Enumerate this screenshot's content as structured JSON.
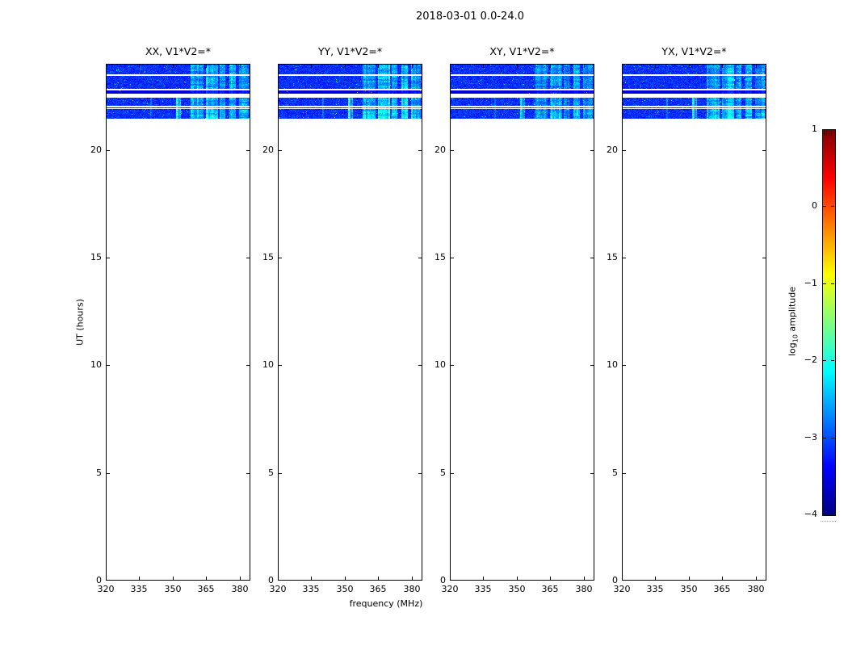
{
  "chart_data": {
    "type": "heatmap",
    "title": "2018-03-01 0.0-24.0",
    "xlabel": "frequency (MHz)",
    "ylabel": "UT (hours)",
    "xlim": [
      320,
      384
    ],
    "ylim": [
      0,
      24
    ],
    "xticks": [
      320,
      335,
      350,
      365,
      380
    ],
    "yticks": [
      0,
      5,
      10,
      15,
      20
    ],
    "grid": false,
    "panels": [
      {
        "label": "XX, V1*V2=*"
      },
      {
        "label": "YY, V1*V2=*"
      },
      {
        "label": "XY, V1*V2=*"
      },
      {
        "label": "YX, V1*V2=*"
      }
    ],
    "colorbar": {
      "label": "log10 amplitude",
      "label_parts": {
        "prefix": "log",
        "sub": "10",
        "suffix": " amplitude"
      },
      "lim": [
        -4,
        1
      ],
      "tick_values": [
        1,
        0,
        -1,
        -2,
        -3,
        -4
      ],
      "tick_labels": [
        "1",
        "0",
        "−1",
        "−2",
        "−3",
        "−4"
      ],
      "colormap": "jet",
      "colormap_stops": [
        [
          0.0,
          "#000080"
        ],
        [
          0.125,
          "#0000ff"
        ],
        [
          0.375,
          "#00ffff"
        ],
        [
          0.625,
          "#ffff00"
        ],
        [
          0.875,
          "#ff0000"
        ],
        [
          1.0,
          "#800000"
        ]
      ]
    },
    "observation": {
      "ut_range": [
        21.46,
        24.0
      ],
      "base_level": -3.15,
      "noise_sigma": 0.35,
      "gaps_ut": [
        [
          23.42,
          23.5
        ],
        [
          22.78,
          22.83
        ],
        [
          22.41,
          22.6
        ],
        [
          21.96,
          22.04
        ],
        [
          21.89,
          21.93
        ]
      ],
      "dark_band_ut": [
        22.6,
        22.78
      ],
      "rfi_bands": [
        {
          "mhz": [
            357.5,
            363.5
          ],
          "boost": 1.0
        },
        {
          "mhz": [
            364.5,
            369.8
          ],
          "boost": 1.25
        },
        {
          "mhz": [
            370.8,
            373.2
          ],
          "boost": 0.85
        },
        {
          "mhz": [
            374.8,
            377.8
          ],
          "boost": 1.15
        },
        {
          "mhz": [
            379.2,
            383.5
          ],
          "boost": 0.95
        }
      ],
      "rfi_lines": [
        {
          "mhz": 351.7,
          "ut": [
            21.46,
            22.41
          ],
          "boost": 1.5
        },
        {
          "mhz": 352.9,
          "ut": [
            21.46,
            22.41
          ],
          "boost": 0.9
        },
        {
          "mhz": 339.8,
          "ut": [
            21.46,
            22.41
          ],
          "boost": 0.45
        }
      ],
      "panel_rfi_scale": [
        1.0,
        1.05,
        0.8,
        0.95
      ]
    },
    "background_color": "#ffffff",
    "frame_color": "#000000",
    "text_color": "#000000"
  }
}
